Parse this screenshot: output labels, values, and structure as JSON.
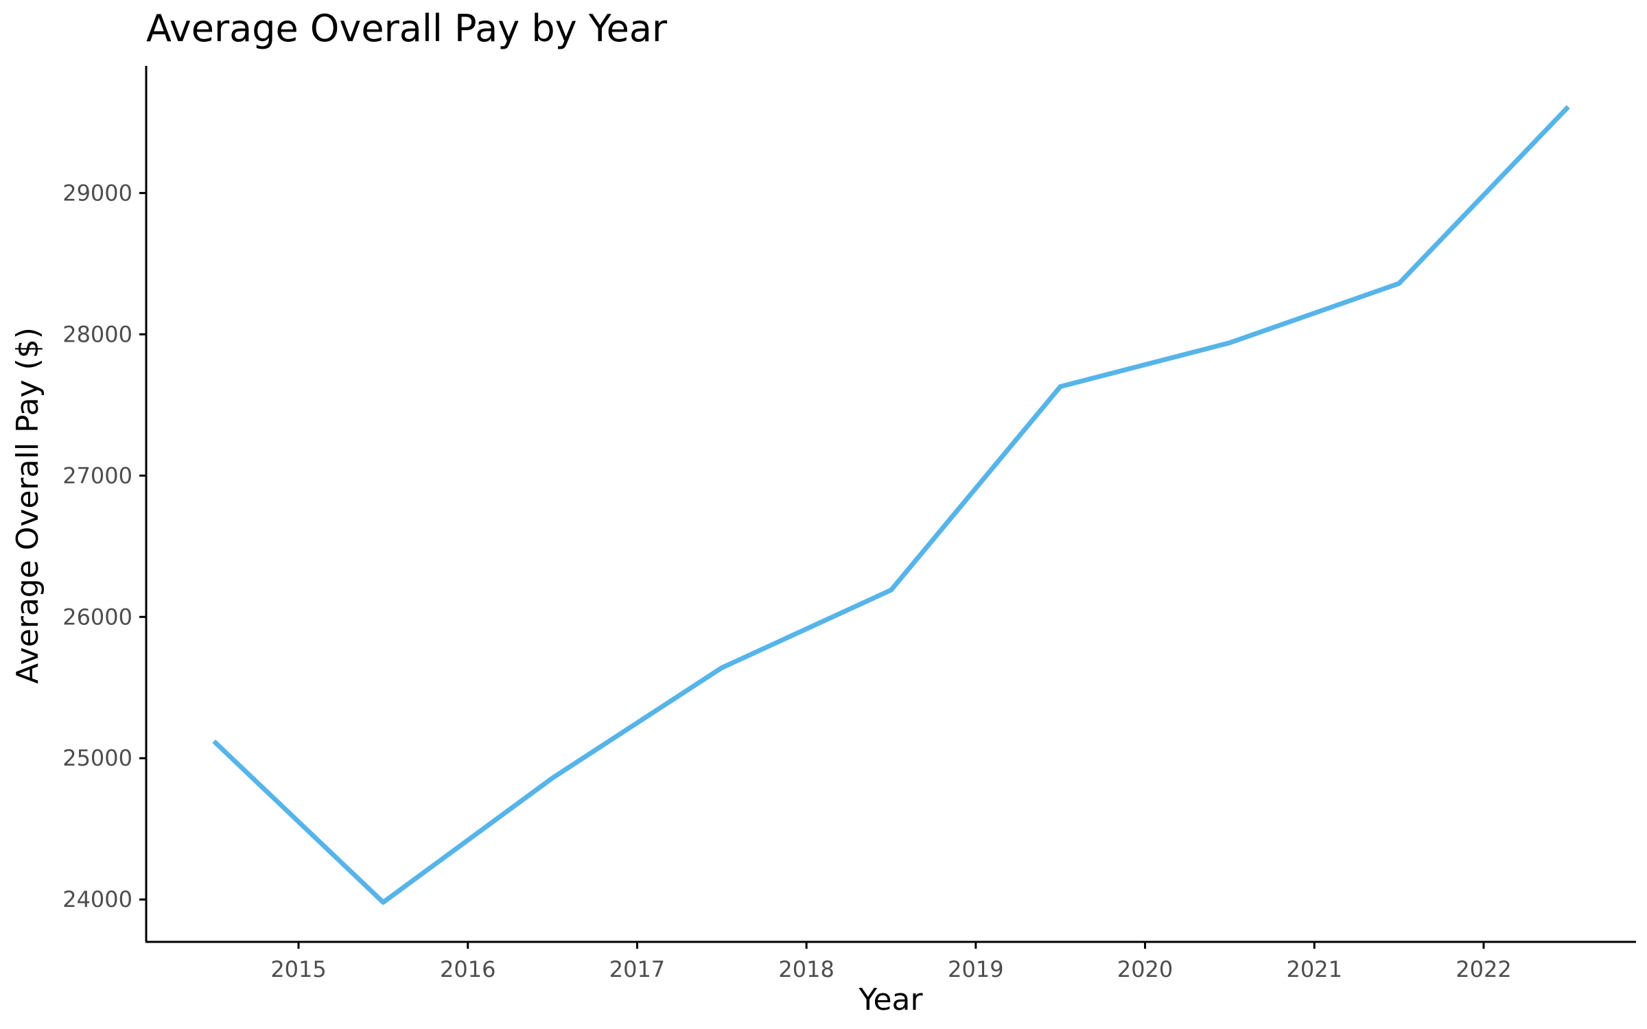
{
  "chart_data": {
    "type": "line",
    "title": "Average Overall Pay by Year",
    "xlabel": "Year",
    "ylabel": "Average Overall Pay ($)",
    "x_ticks": [
      "2015",
      "2016",
      "2017",
      "2018",
      "2019",
      "2020",
      "2021",
      "2022"
    ],
    "y_ticks": [
      "24000",
      "25000",
      "26000",
      "27000",
      "28000",
      "29000"
    ],
    "xlim": [
      2014.1,
      2022.9
    ],
    "ylim": [
      23700,
      29900
    ],
    "grid": false,
    "legend": "none",
    "colors": {
      "series": "#56b4e9",
      "axis": "#000000",
      "tick_text": "#4d4d4d"
    },
    "series": [
      {
        "x": [
          2014.5,
          2015.5,
          2016.5,
          2017.5,
          2018.5,
          2019.5,
          2020.5,
          2021.5,
          2022.5
        ],
        "y": [
          25120,
          23980,
          24860,
          25640,
          26190,
          27630,
          27940,
          28360,
          29610
        ]
      }
    ]
  }
}
